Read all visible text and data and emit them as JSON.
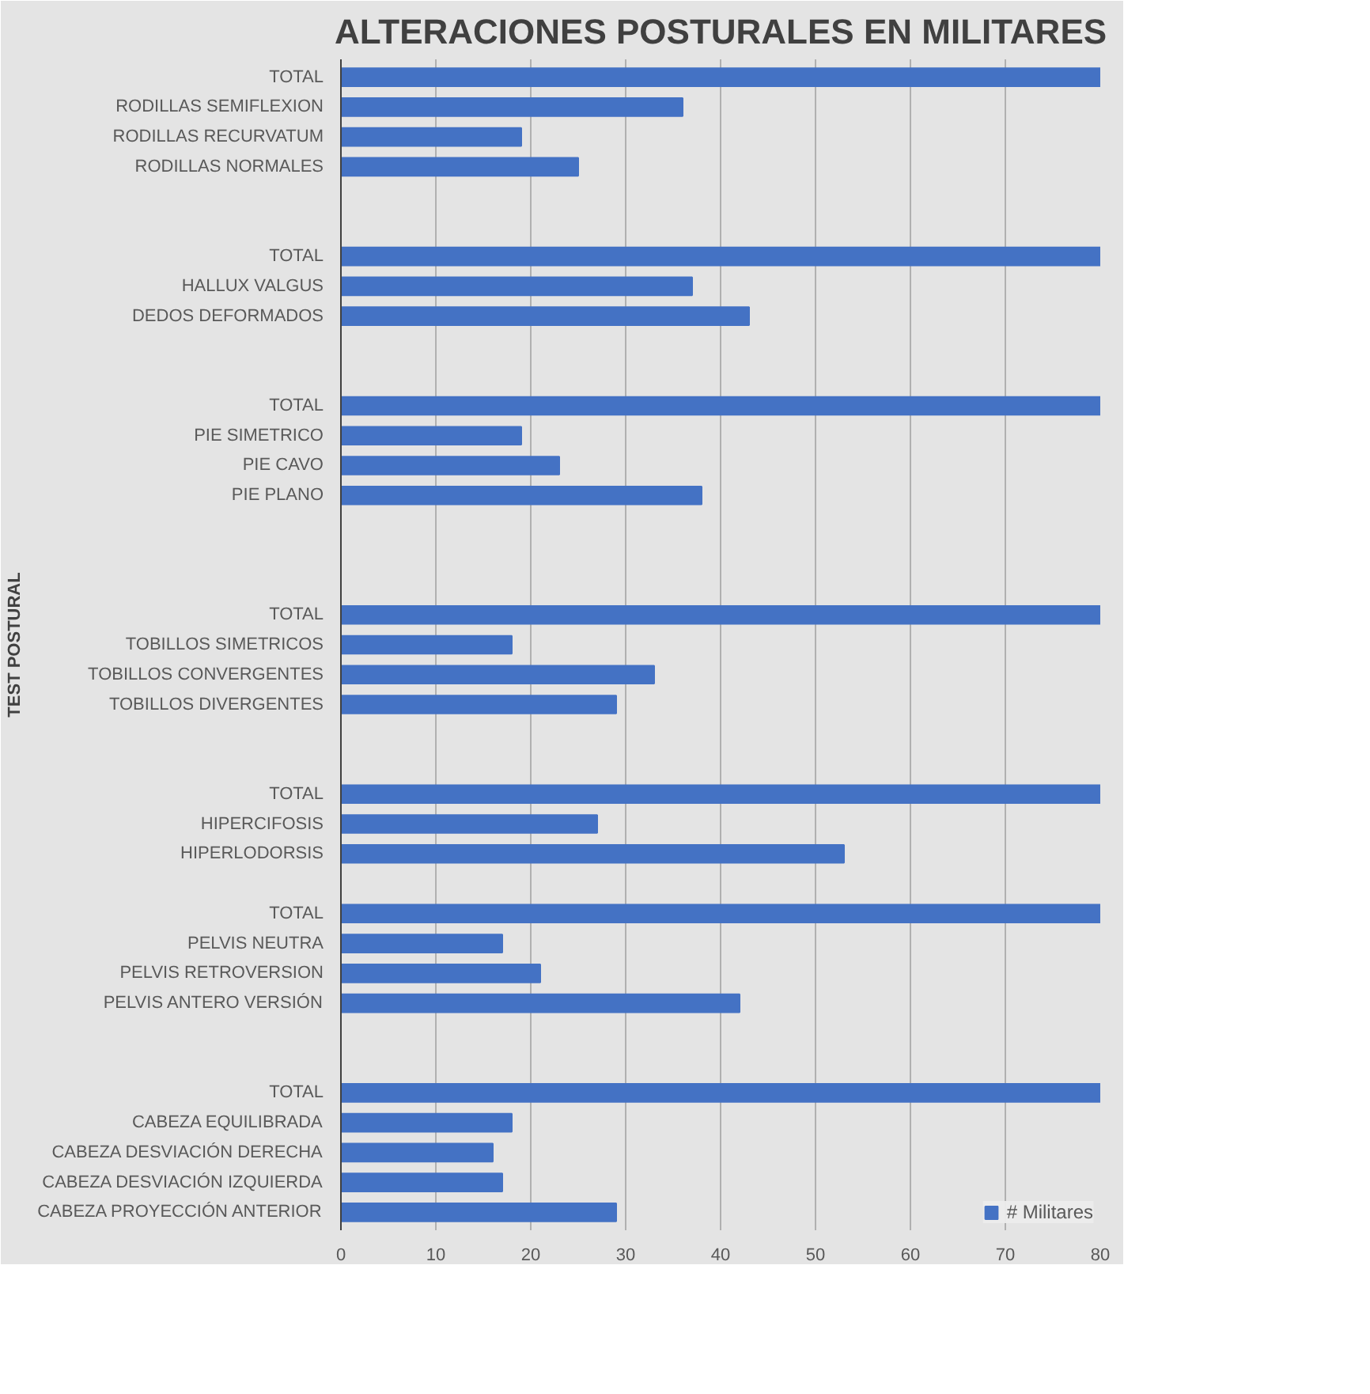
{
  "chart_data": {
    "type": "bar",
    "orientation": "horizontal",
    "title": "ALTERACIONES POSTURALES EN MILITARES",
    "ylabel": "TEST POSTURAL",
    "categories": [
      "TOTAL",
      "RODILLAS SEMIFLEXION",
      "RODILLAS RECURVATUM",
      "RODILLAS NORMALES",
      null,
      null,
      "TOTAL",
      "HALLUX VALGUS",
      "DEDOS DEFORMADOS",
      null,
      null,
      "TOTAL",
      "PIE SIMETRICO",
      "PIE CAVO",
      "PIE PLANO",
      null,
      null,
      null,
      "TOTAL",
      "TOBILLOS SIMETRICOS",
      "TOBILLOS CONVERGENTES",
      "TOBILLOS DIVERGENTES",
      null,
      null,
      "TOTAL",
      "HIPERCIFOSIS",
      "HIPERLODORSIS",
      null,
      "TOTAL",
      "PELVIS NEUTRA",
      "PELVIS RETROVERSION",
      "PELVIS ANTERO VERSIÓN",
      null,
      null,
      "TOTAL",
      "CABEZA EQUILIBRADA",
      "CABEZA DESVIACIÓN DERECHA",
      "CABEZA DESVIACIÓN IZQUIERDA",
      "CABEZA PROYECCIÓN ANTERIOR"
    ],
    "series": [
      {
        "name": "# Militares",
        "color": "#4472c4",
        "values": [
          80,
          36,
          19,
          25,
          null,
          null,
          80,
          37,
          43,
          null,
          null,
          80,
          19,
          23,
          38,
          null,
          null,
          null,
          80,
          18,
          33,
          29,
          null,
          null,
          80,
          27,
          53,
          null,
          80,
          17,
          21,
          42,
          null,
          null,
          80,
          18,
          16,
          17,
          29
        ]
      }
    ],
    "xlim": [
      0,
      80
    ],
    "xticks": [
      0,
      10,
      20,
      30,
      40,
      50,
      60,
      70,
      80
    ],
    "grid": "x",
    "legend": "bottom"
  }
}
